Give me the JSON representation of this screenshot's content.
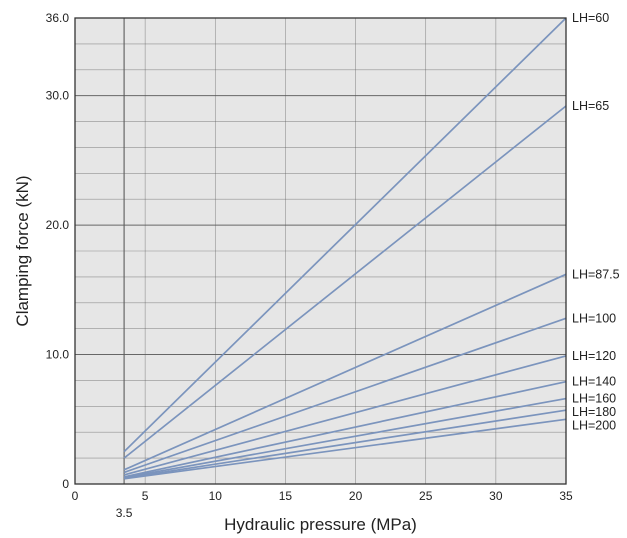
{
  "chart_data": {
    "type": "line",
    "title": "",
    "xlabel": "Hydraulic pressure (MPa)",
    "ylabel": "Clamping force (kN)",
    "xlim": [
      0,
      35
    ],
    "ylim": [
      0,
      36
    ],
    "grid": true,
    "x_ticks": [
      {
        "value": 0,
        "label": "0"
      },
      {
        "value": 5,
        "label": "5"
      },
      {
        "value": 10,
        "label": "10"
      },
      {
        "value": 15,
        "label": "15"
      },
      {
        "value": 20,
        "label": "20"
      },
      {
        "value": 25,
        "label": "25"
      },
      {
        "value": 30,
        "label": "30"
      },
      {
        "value": 35,
        "label": "35"
      }
    ],
    "x_extra_ticks": [
      {
        "value": 3.5,
        "label": "3.5"
      }
    ],
    "y_ticks": [
      {
        "value": 0,
        "label": "0"
      },
      {
        "value": 10,
        "label": "10.0"
      },
      {
        "value": 20,
        "label": "20.0"
      },
      {
        "value": 30,
        "label": "30.0"
      },
      {
        "value": 36,
        "label": "36.0"
      }
    ],
    "x_minor_gridlines": [
      3.5,
      5,
      10,
      15,
      20,
      25,
      30
    ],
    "y_minor_gridlines": [
      2,
      4,
      6,
      8,
      10,
      12,
      14,
      16,
      18,
      20,
      22,
      24,
      26,
      28,
      30,
      32,
      34
    ],
    "series": [
      {
        "name": "LH=60",
        "x": [
          3.5,
          35
        ],
        "y": [
          2.5,
          36.0
        ]
      },
      {
        "name": "LH=65",
        "x": [
          3.5,
          35
        ],
        "y": [
          2.0,
          29.2
        ]
      },
      {
        "name": "LH=87.5",
        "x": [
          3.5,
          35
        ],
        "y": [
          1.1,
          16.2
        ]
      },
      {
        "name": "LH=100",
        "x": [
          3.5,
          35
        ],
        "y": [
          0.9,
          12.8
        ]
      },
      {
        "name": "LH=120",
        "x": [
          3.5,
          35
        ],
        "y": [
          0.7,
          9.9
        ]
      },
      {
        "name": "LH=140",
        "x": [
          3.5,
          35
        ],
        "y": [
          0.55,
          7.9
        ]
      },
      {
        "name": "LH=160",
        "x": [
          3.5,
          35
        ],
        "y": [
          0.5,
          6.6
        ]
      },
      {
        "name": "LH=180",
        "x": [
          3.5,
          35
        ],
        "y": [
          0.45,
          5.7
        ]
      },
      {
        "name": "LH=200",
        "x": [
          3.5,
          35
        ],
        "y": [
          0.4,
          5.0
        ]
      }
    ],
    "colors": {
      "line": "#7b94bd",
      "plot_background": "#e6e6e6",
      "grid": "#5a5a5a",
      "frame": "#333333"
    }
  }
}
